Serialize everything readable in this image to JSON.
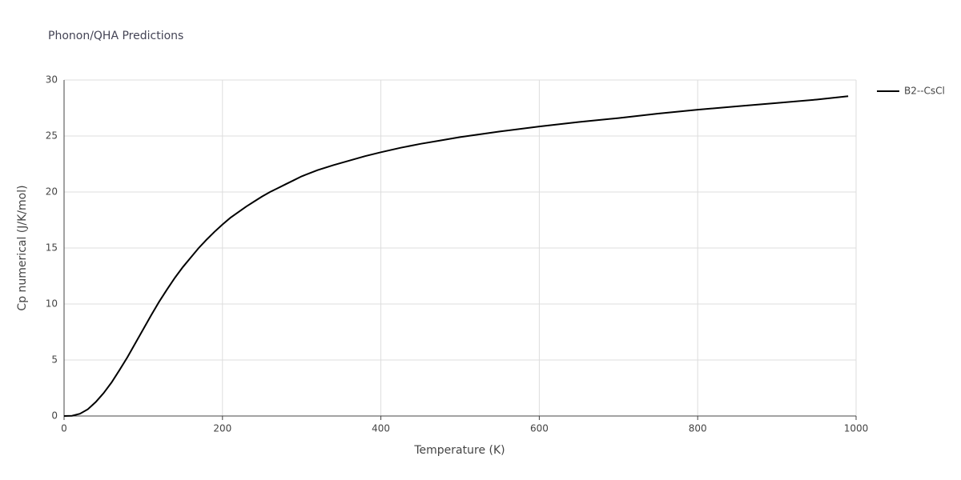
{
  "chart_data": {
    "type": "line",
    "title": "Phonon/QHA Predictions",
    "x_label": "Temperature (K)",
    "y_label": "Cp numerical (J/K/mol)",
    "x": [
      0,
      10,
      20,
      30,
      40,
      50,
      60,
      70,
      80,
      90,
      100,
      110,
      120,
      130,
      140,
      150,
      160,
      170,
      180,
      190,
      200,
      210,
      220,
      230,
      240,
      250,
      260,
      270,
      280,
      290,
      300,
      320,
      340,
      360,
      380,
      400,
      425,
      450,
      475,
      500,
      550,
      600,
      650,
      700,
      750,
      800,
      850,
      900,
      950,
      990
    ],
    "series": [
      {
        "name": "B2--CsCl",
        "color": "#000000",
        "values": [
          0,
          0.02,
          0.2,
          0.6,
          1.25,
          2.05,
          3.0,
          4.1,
          5.25,
          6.5,
          7.75,
          9.0,
          10.2,
          11.3,
          12.35,
          13.3,
          14.15,
          15.0,
          15.75,
          16.45,
          17.1,
          17.7,
          18.2,
          18.7,
          19.15,
          19.6,
          20.0,
          20.35,
          20.7,
          21.05,
          21.4,
          21.95,
          22.4,
          22.8,
          23.2,
          23.55,
          23.95,
          24.3,
          24.6,
          24.9,
          25.4,
          25.85,
          26.25,
          26.6,
          27.0,
          27.35,
          27.65,
          27.95,
          28.25,
          28.55
        ]
      }
    ],
    "xlim": [
      0,
      1000
    ],
    "xticks": [
      0,
      200,
      400,
      600,
      800,
      1000
    ],
    "ylim": [
      0,
      30
    ],
    "yticks": [
      0,
      5,
      10,
      15,
      20,
      25,
      30
    ],
    "grid": true,
    "legend": "right"
  }
}
